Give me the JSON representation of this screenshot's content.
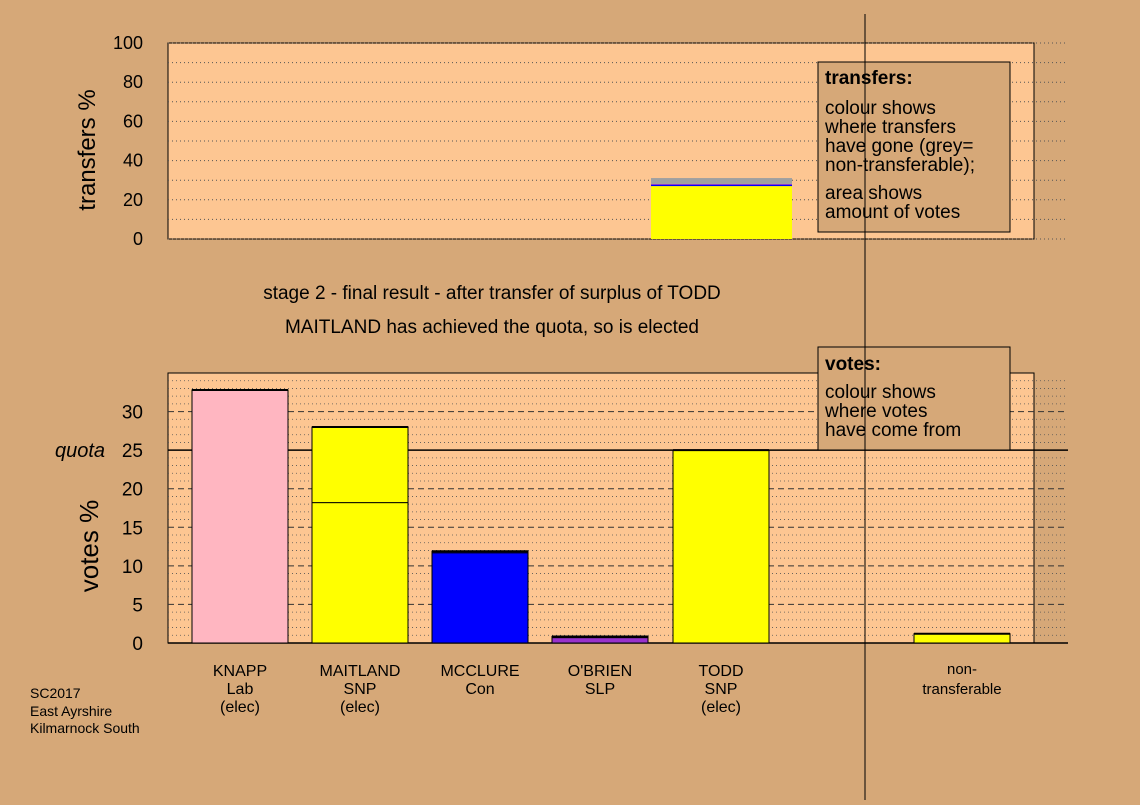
{
  "colors": {
    "background": "#d6a878",
    "plot_area": "#fdc692",
    "box_fill": "#d6a878",
    "grey_nontransferable": "#a0a0a0"
  },
  "stage_title": "stage 2 - final result - after transfer of surplus of TODD",
  "stage_subtitle": "MAITLAND has achieved the quota, so is elected",
  "footer": [
    "SC2017",
    "East Ayrshire",
    "Kilmarnock South"
  ],
  "transfers_box": {
    "heading": "transfers:",
    "para1": [
      "colour shows",
      "where transfers",
      "have gone (grey=",
      "non-transferable);"
    ],
    "para2": [
      "area shows",
      "amount of votes"
    ]
  },
  "votes_box": {
    "heading": "votes:",
    "para1": [
      "colour shows",
      "where votes",
      "have come from"
    ]
  },
  "candidates": [
    {
      "name": "KNAPP",
      "party": "Lab",
      "status": "(elec)"
    },
    {
      "name": "MAITLAND",
      "party": "SNP",
      "status": "(elec)"
    },
    {
      "name": "MCCLURE",
      "party": "Con",
      "status": ""
    },
    {
      "name": "O'BRIEN",
      "party": "SLP",
      "status": ""
    },
    {
      "name": "TODD",
      "party": "SNP",
      "status": "(elec)"
    }
  ],
  "nontransferable_label": [
    "non-",
    "transferable"
  ],
  "chart_data": [
    {
      "type": "bar",
      "name": "transfers",
      "ylabel": "transfers %",
      "ylim": [
        0,
        100
      ],
      "yticks": [
        0,
        20,
        40,
        60,
        80,
        100
      ],
      "bars": [
        {
          "position": "TODD",
          "segments": [
            {
              "to": "MAITLAND (SNP)",
              "value": 27.0,
              "color": "#ffff00"
            },
            {
              "to": "MCCLURE (Con)",
              "value": 0.7,
              "color": "#0000ff"
            },
            {
              "to": "O'BRIEN (SLP)",
              "value": 0.4,
              "color": "#9932cc"
            },
            {
              "to": "non-transferable",
              "value": 3.0,
              "color": "#a0a0a0"
            }
          ]
        }
      ]
    },
    {
      "type": "bar",
      "name": "votes",
      "ylabel": "votes %",
      "ylim": [
        0,
        35
      ],
      "yticks": [
        0,
        5,
        10,
        15,
        20,
        25,
        30
      ],
      "quota": 25,
      "quota_label": "quota",
      "categories": [
        "KNAPP",
        "MAITLAND",
        "MCCLURE",
        "O'BRIEN",
        "TODD",
        "non-transferable"
      ],
      "bars": [
        {
          "category": "KNAPP",
          "segments": [
            {
              "source": "first preferences",
              "value": 32.8,
              "color": "#ffb6c1"
            }
          ]
        },
        {
          "category": "MAITLAND",
          "segments": [
            {
              "source": "first preferences",
              "value": 18.2,
              "color": "#ffff00"
            },
            {
              "source": "transfer from TODD",
              "value": 9.8,
              "color": "#ffff00"
            }
          ]
        },
        {
          "category": "MCCLURE",
          "segments": [
            {
              "source": "first preferences",
              "value": 11.7,
              "color": "#0000ff"
            },
            {
              "source": "transfer from TODD",
              "value": 0.2,
              "color": "#0000ff"
            }
          ]
        },
        {
          "category": "O'BRIEN",
          "segments": [
            {
              "source": "first preferences",
              "value": 0.7,
              "color": "#9932cc"
            },
            {
              "source": "transfer from TODD",
              "value": 0.15,
              "color": "#9932cc"
            }
          ]
        },
        {
          "category": "TODD",
          "segments": [
            {
              "source": "quota retained",
              "value": 25.0,
              "color": "#ffff00"
            }
          ]
        },
        {
          "category": "non-transferable",
          "segments": [
            {
              "source": "TODD surplus",
              "value": 1.2,
              "color": "#ffff00"
            }
          ]
        }
      ]
    }
  ]
}
